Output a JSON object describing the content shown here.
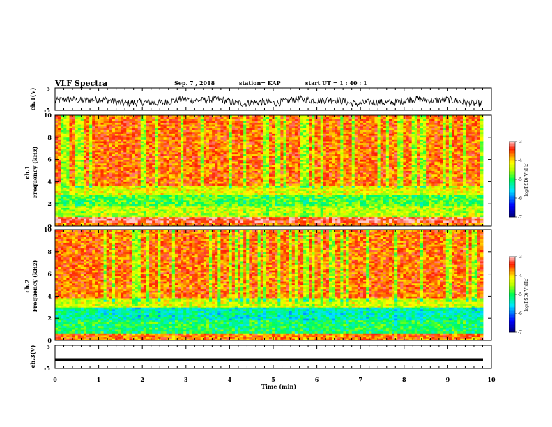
{
  "header": {
    "title": "VLF Spectra",
    "date": "Sep. 7 , 2018",
    "station": "station= KAP",
    "start": "start  UT =   1 : 40 : 1"
  },
  "chart_data": [
    {
      "type": "line",
      "name": "ch1-waveform",
      "ylabel": "ch.1(V)",
      "ylim": [
        -5,
        5
      ],
      "ytick_labels": [
        "5",
        "-5"
      ],
      "xlim": [
        0,
        10
      ],
      "description_values": "noisy voltage trace around about -1 V with spikes between about -3 and +3"
    },
    {
      "type": "heatmap",
      "name": "ch1-spectrogram",
      "ylabel": "ch.1\nFrequency  (kHz)",
      "ylim": [
        0,
        10
      ],
      "ytick_labels": [
        "0",
        "2",
        "4",
        "6",
        "8",
        "10"
      ],
      "xlim": [
        0,
        9.8
      ],
      "colorbar": {
        "label": "log(PSD)(V²/Hz)",
        "range": [
          -7,
          -3
        ],
        "tick_labels": [
          "-3",
          "-4",
          "-5",
          "-6",
          "-7"
        ]
      },
      "bands": [
        {
          "from_khz": 0,
          "to_khz": 0.4,
          "level": -3.6
        },
        {
          "from_khz": 0.4,
          "to_khz": 0.9,
          "level": -3.2
        },
        {
          "from_khz": 0.9,
          "to_khz": 1.8,
          "level": -4.4
        },
        {
          "from_khz": 1.8,
          "to_khz": 2.8,
          "level": -4.8
        },
        {
          "from_khz": 2.8,
          "to_khz": 3.6,
          "level": -4.2
        },
        {
          "from_khz": 3.6,
          "to_khz": 10,
          "level": -3.6
        }
      ]
    },
    {
      "type": "heatmap",
      "name": "ch2-spectrogram",
      "ylabel": "ch.2\nFrequency  (kHz)",
      "ylim": [
        0,
        10
      ],
      "ytick_labels": [
        "0",
        "2",
        "4",
        "6",
        "8",
        "10"
      ],
      "xlim": [
        0,
        9.8
      ],
      "colorbar": {
        "label": "log(PSD)(V²/Hz)",
        "range": [
          -7,
          -3
        ],
        "tick_labels": [
          "-3",
          "-4",
          "-5",
          "-6",
          "-7"
        ]
      },
      "bands": [
        {
          "from_khz": 0,
          "to_khz": 0.6,
          "level": -3.6
        },
        {
          "from_khz": 0.6,
          "to_khz": 1.8,
          "level": -5.0
        },
        {
          "from_khz": 1.8,
          "to_khz": 3.0,
          "level": -5.3
        },
        {
          "from_khz": 3.0,
          "to_khz": 3.8,
          "level": -4.3
        },
        {
          "from_khz": 3.8,
          "to_khz": 10,
          "level": -3.6
        }
      ]
    },
    {
      "type": "line",
      "name": "ch3-waveform",
      "ylabel": "ch.3(V)",
      "ylim": [
        -5,
        5
      ],
      "ytick_labels": [
        "5",
        "-5"
      ],
      "xlim": [
        0,
        10
      ],
      "constant_value": -1.2
    }
  ],
  "xaxis": {
    "label": "Time  (min)",
    "tick_labels": [
      "0",
      "1",
      "2",
      "3",
      "4",
      "5",
      "6",
      "7",
      "8",
      "9",
      "10"
    ],
    "range": [
      0,
      10
    ]
  }
}
